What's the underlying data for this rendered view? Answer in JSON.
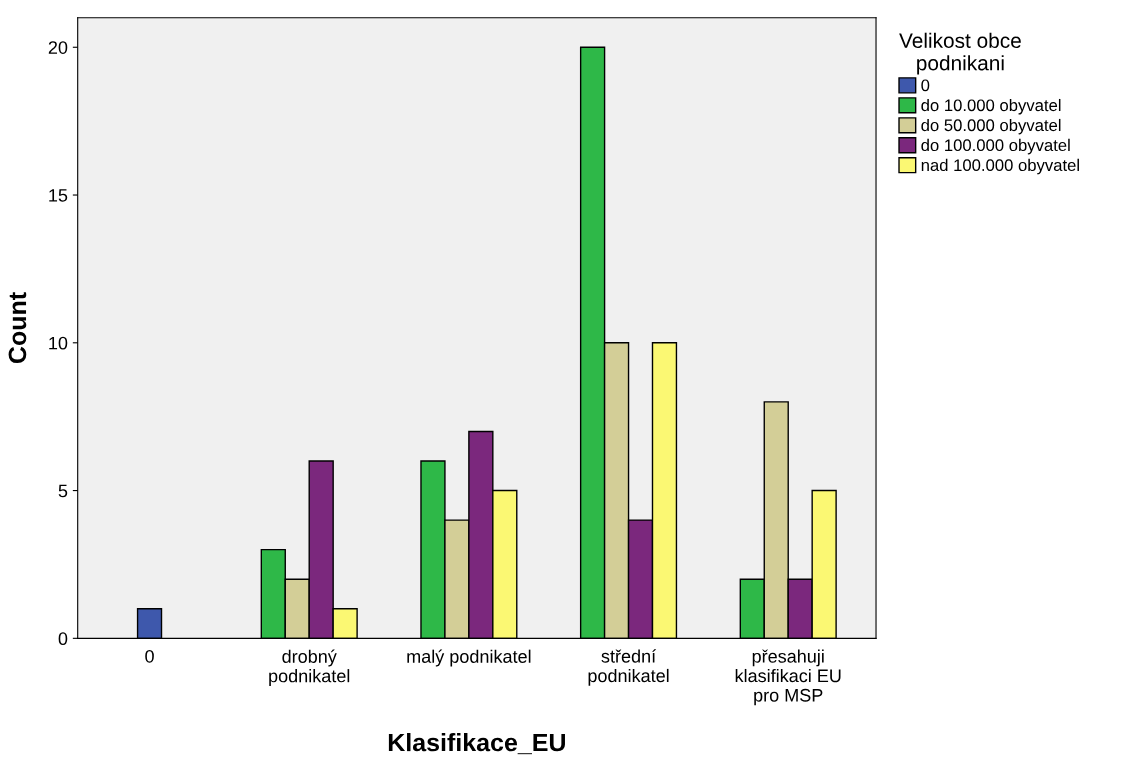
{
  "chart_data": {
    "type": "bar",
    "xlabel": "Klasifikace_EU",
    "ylabel": "Count",
    "legend_title": "Velikost obce\npodnikani",
    "categories": [
      "0",
      "drobný\npodnikatel",
      "malý podnikatel",
      "střední\npodnikatel",
      "přesahuji\nklasifikaci EU\npro MSP"
    ],
    "series": [
      {
        "name": "0",
        "color": "#3e58ac",
        "values": [
          1,
          null,
          null,
          null,
          null
        ]
      },
      {
        "name": "do 10.000 obyvatel",
        "color": "#2eb848",
        "values": [
          null,
          3,
          6,
          20,
          2
        ]
      },
      {
        "name": "do 50.000 obyvatel",
        "color": "#d3ce97",
        "values": [
          null,
          2,
          4,
          10,
          8
        ]
      },
      {
        "name": "do 100.000 obyvatel",
        "color": "#7b287d",
        "values": [
          null,
          6,
          7,
          4,
          2
        ]
      },
      {
        "name": "nad 100.000 obyvatel",
        "color": "#fbf873",
        "values": [
          null,
          1,
          5,
          10,
          5
        ]
      }
    ],
    "ylim": [
      0,
      21
    ],
    "yticks": [
      0,
      5,
      10,
      15,
      20
    ],
    "grid": false,
    "legend": "top right"
  }
}
